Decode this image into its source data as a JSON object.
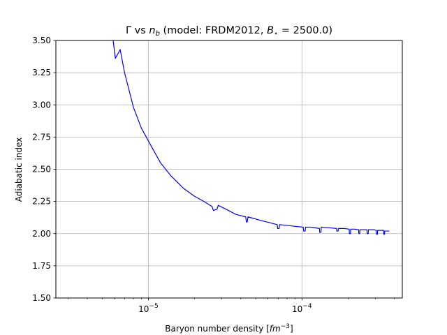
{
  "chart_data": {
    "type": "line",
    "title_parts": {
      "gamma": "Γ",
      "vs": " vs ",
      "n": "n",
      "b": "b",
      "model_prefix": " (model: FRDM2012, ",
      "B": "B",
      "star": "⋆",
      "eq": " = 2500.0)"
    },
    "xlabel_parts": {
      "text": "Baryon number density [",
      "fm": "fm",
      "exp": "−3",
      "close": "]"
    },
    "ylabel": "Adiabatic index",
    "xscale": "log",
    "xlim": [
      2.5e-06,
      0.00045
    ],
    "ylim": [
      1.5,
      3.5
    ],
    "grid": true,
    "line_color": "#0000ff",
    "y_ticks": [
      "1.50",
      "1.75",
      "2.00",
      "2.25",
      "2.50",
      "2.75",
      "3.00",
      "3.25",
      "3.50"
    ],
    "x_major_ticks": [
      {
        "value": 1e-05,
        "base": "10",
        "exp": "−5"
      },
      {
        "value": 0.0001,
        "base": "10",
        "exp": "−4"
      }
    ],
    "series": [
      {
        "x": [
          5.9e-06,
          6.1e-06,
          6.15e-06,
          6.5e-06,
          6.55e-06,
          7e-06,
          8e-06,
          9e-06,
          1e-05,
          1.2e-05,
          1.4e-05,
          1.7e-05,
          2e-05,
          2.3e-05,
          2.6e-05,
          2.65e-05,
          2.8e-05,
          2.85e-05,
          3.2e-05,
          3.7e-05,
          4.3e-05,
          4.35e-05,
          4.4e-05,
          4.45e-05,
          5.5e-05,
          6.9e-05,
          6.95e-05,
          7.1e-05,
          7.15e-05,
          8.5e-05,
          0.000102,
          0.0001025,
          0.000105,
          0.0001055,
          0.000115,
          0.00013,
          0.0001305,
          0.000133,
          0.0001335,
          0.000152,
          0.000168,
          0.0001685,
          0.000172,
          0.0001725,
          0.000188,
          0.000203,
          0.0002035,
          0.000207,
          0.0002075,
          0.00022,
          0.000234,
          0.0002345,
          0.000238,
          0.0002385,
          0.000257,
          0.000265,
          0.0002655,
          0.00027,
          0.0002705,
          0.000295,
          0.000305,
          0.0003055,
          0.00031,
          0.0003105,
          0.000335,
          0.00034,
          0.0003405,
          0.000345,
          0.0003455,
          0.00037
        ],
        "y": [
          3.5,
          3.36,
          3.37,
          3.42,
          3.43,
          3.25,
          2.98,
          2.82,
          2.72,
          2.55,
          2.45,
          2.35,
          2.29,
          2.25,
          2.21,
          2.18,
          2.19,
          2.22,
          2.19,
          2.15,
          2.13,
          2.09,
          2.09,
          2.13,
          2.1,
          2.07,
          2.04,
          2.04,
          2.07,
          2.06,
          2.05,
          2.02,
          2.02,
          2.05,
          2.05,
          2.04,
          2.01,
          2.01,
          2.05,
          2.045,
          2.04,
          2.02,
          2.02,
          2.04,
          2.04,
          2.035,
          2.0,
          2.0,
          2.035,
          2.035,
          2.03,
          2.0,
          2.0,
          2.03,
          2.03,
          2.03,
          2.0,
          2.0,
          2.03,
          2.03,
          2.025,
          1.995,
          1.995,
          2.025,
          2.025,
          2.025,
          1.995,
          1.995,
          2.02,
          2.02
        ]
      }
    ]
  }
}
